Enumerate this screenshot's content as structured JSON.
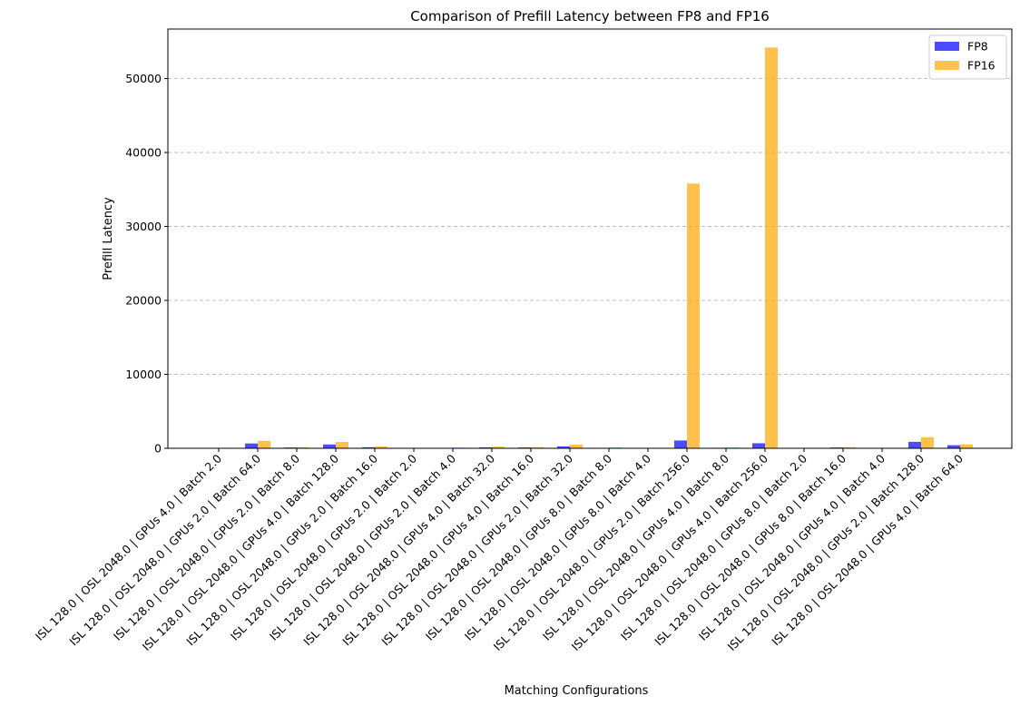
{
  "chart_data": {
    "type": "bar",
    "title": "Comparison of Prefill Latency between FP8 and FP16",
    "xlabel": "Matching Configurations",
    "ylabel": "Prefill Latency",
    "ylim": [
      0,
      56700
    ],
    "yticks": [
      0,
      10000,
      20000,
      30000,
      40000,
      50000
    ],
    "grid": "y-dashed",
    "legend_position": "top-right",
    "categories": [
      "ISL 128.0 | OSL 2048.0 | GPUs 4.0 | Batch 2.0",
      "ISL 128.0 | OSL 2048.0 | GPUs 2.0 | Batch 64.0",
      "ISL 128.0 | OSL 2048.0 | GPUs 2.0 | Batch 8.0",
      "ISL 128.0 | OSL 2048.0 | GPUs 4.0 | Batch 128.0",
      "ISL 128.0 | OSL 2048.0 | GPUs 2.0 | Batch 16.0",
      "ISL 128.0 | OSL 2048.0 | GPUs 2.0 | Batch 2.0",
      "ISL 128.0 | OSL 2048.0 | GPUs 2.0 | Batch 4.0",
      "ISL 128.0 | OSL 2048.0 | GPUs 4.0 | Batch 32.0",
      "ISL 128.0 | OSL 2048.0 | GPUs 4.0 | Batch 16.0",
      "ISL 128.0 | OSL 2048.0 | GPUs 2.0 | Batch 32.0",
      "ISL 128.0 | OSL 2048.0 | GPUs 8.0 | Batch 8.0",
      "ISL 128.0 | OSL 2048.0 | GPUs 8.0 | Batch 4.0",
      "ISL 128.0 | OSL 2048.0 | GPUs 2.0 | Batch 256.0",
      "ISL 128.0 | OSL 2048.0 | GPUs 4.0 | Batch 8.0",
      "ISL 128.0 | OSL 2048.0 | GPUs 4.0 | Batch 256.0",
      "ISL 128.0 | OSL 2048.0 | GPUs 8.0 | Batch 2.0",
      "ISL 128.0 | OSL 2048.0 | GPUs 8.0 | Batch 16.0",
      "ISL 128.0 | OSL 2048.0 | GPUs 4.0 | Batch 4.0",
      "ISL 128.0 | OSL 2048.0 | GPUs 2.0 | Batch 128.0",
      "ISL 128.0 | OSL 2048.0 | GPUs 4.0 | Batch 64.0"
    ],
    "series": [
      {
        "name": "FP8",
        "color": "#0000ff",
        "opacity": 0.7,
        "values": [
          20,
          650,
          110,
          520,
          140,
          25,
          45,
          130,
          110,
          260,
          55,
          40,
          1050,
          70,
          680,
          20,
          110,
          25,
          870,
          420
        ]
      },
      {
        "name": "FP16",
        "color": "#ffa500",
        "opacity": 0.7,
        "values": [
          25,
          1000,
          150,
          850,
          250,
          50,
          100,
          230,
          160,
          500,
          120,
          60,
          35800,
          130,
          54200,
          30,
          150,
          40,
          1500,
          530
        ]
      }
    ]
  }
}
